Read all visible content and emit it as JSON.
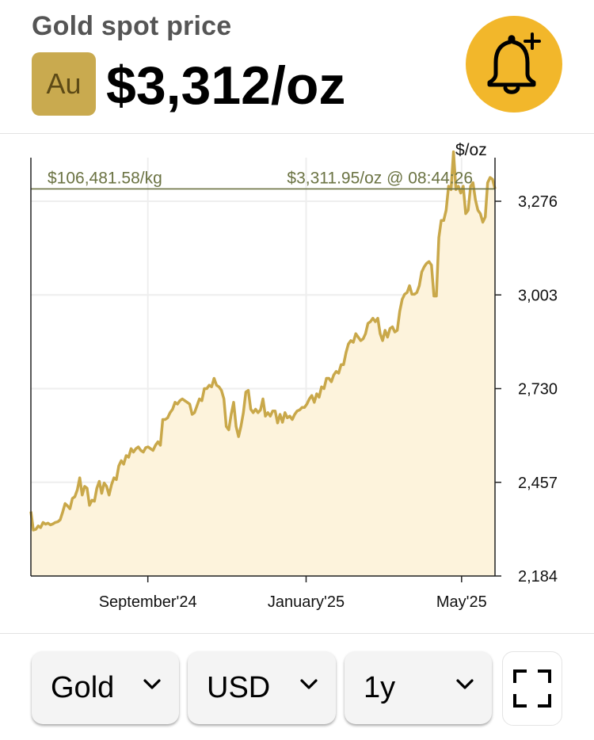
{
  "header": {
    "title": "Gold spot price",
    "symbol": "Au",
    "price": "$3,312/oz",
    "alert_icon": "bell-plus-icon"
  },
  "colors": {
    "accent": "#f2b72b",
    "symbol_bg": "#c9aa4f",
    "line": "#c9a84a",
    "fill": "#fdf3dc",
    "reference_line": "#6b7343"
  },
  "chart_data": {
    "type": "area",
    "unit_label": "$/oz",
    "y_ticks": [
      3276,
      3003,
      2730,
      2457,
      2184
    ],
    "y_tick_labels": [
      "3,276",
      "3,003",
      "2,730",
      "2,457",
      "2,184"
    ],
    "ylim": [
      2184,
      3403
    ],
    "x_ticks": [
      {
        "label": "September'24",
        "x": 0.252
      },
      {
        "label": "January'25",
        "x": 0.593
      },
      {
        "label": "May'25",
        "x": 0.928
      }
    ],
    "reference": {
      "value": 3311.95,
      "left_label": "$106,481.58/kg",
      "right_label": "$3,311.95/oz @ 08:44:26"
    },
    "values": [
      2372,
      2318,
      2320,
      2330,
      2325,
      2340,
      2335,
      2338,
      2333,
      2336,
      2340,
      2342,
      2348,
      2370,
      2395,
      2388,
      2380,
      2410,
      2415,
      2435,
      2470,
      2420,
      2445,
      2440,
      2390,
      2405,
      2402,
      2440,
      2460,
      2425,
      2455,
      2445,
      2420,
      2450,
      2470,
      2465,
      2505,
      2520,
      2510,
      2535,
      2530,
      2555,
      2545,
      2555,
      2560,
      2550,
      2545,
      2558,
      2560,
      2555,
      2550,
      2565,
      2575,
      2565,
      2640,
      2640,
      2645,
      2660,
      2670,
      2690,
      2685,
      2695,
      2700,
      2695,
      2690,
      2685,
      2655,
      2660,
      2680,
      2700,
      2695,
      2730,
      2730,
      2740,
      2735,
      2760,
      2740,
      2735,
      2725,
      2700,
      2620,
      2610,
      2655,
      2690,
      2620,
      2590,
      2620,
      2660,
      2720,
      2725,
      2670,
      2660,
      2670,
      2660,
      2668,
      2700,
      2650,
      2660,
      2650,
      2665,
      2665,
      2630,
      2655,
      2632,
      2660,
      2645,
      2650,
      2640,
      2655,
      2665,
      2668,
      2675,
      2675,
      2685,
      2700,
      2710,
      2690,
      2715,
      2705,
      2735,
      2730,
      2760,
      2760,
      2750,
      2770,
      2780,
      2775,
      2800,
      2800,
      2835,
      2860,
      2870,
      2865,
      2890,
      2880,
      2870,
      2875,
      2890,
      2920,
      2925,
      2935,
      2925,
      2935,
      2890,
      2870,
      2900,
      2880,
      2905,
      2910,
      2895,
      2900,
      2955,
      2990,
      3005,
      3010,
      3030,
      3005,
      3005,
      3010,
      3030,
      3070,
      3085,
      3095,
      3100,
      3090,
      3000,
      3000,
      3170,
      3220,
      3220,
      3250,
      3320,
      3310,
      3420,
      3310,
      3320,
      3300,
      3320,
      3240,
      3250,
      3320,
      3330,
      3280,
      3250,
      3240,
      3215,
      3230,
      3330,
      3345,
      3340,
      3312
    ]
  },
  "controls": {
    "metal": "Gold",
    "currency": "USD",
    "range": "1y",
    "fullscreen_icon": "fullscreen-icon",
    "chevron_icon": "chevron-down-icon"
  }
}
